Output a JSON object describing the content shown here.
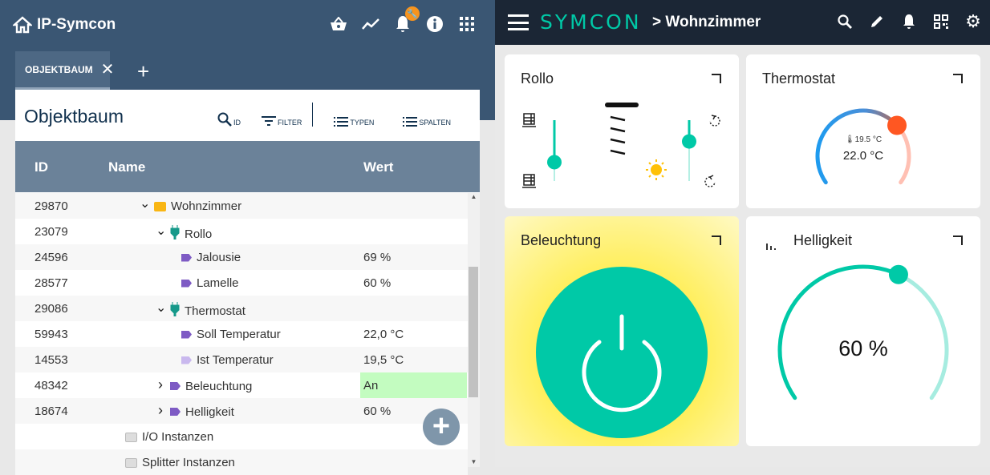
{
  "left": {
    "app_title": "IP-Symcon",
    "toolbar_icons": [
      "basket-icon",
      "chart-line-icon",
      "bell-icon",
      "info-icon",
      "apps-grid-icon"
    ],
    "notification_badge_icon": "wrench-icon",
    "tab": {
      "label": "OBJEKTBAUM"
    },
    "card_title": "Objektbaum",
    "tools": [
      {
        "icon": "search-icon",
        "label": "ID"
      },
      {
        "icon": "filter-icon",
        "label": "FILTER"
      },
      {
        "icon": "list-icon",
        "label": "TYPEN"
      },
      {
        "icon": "list-icon",
        "label": "SPALTEN"
      }
    ],
    "columns": {
      "id": "ID",
      "name": "Name",
      "value": "Wert"
    },
    "rows": [
      {
        "id": "29870",
        "name": "Wohnzimmer",
        "value": "",
        "type": "folder",
        "chevron": "down",
        "indent": 1
      },
      {
        "id": "23079",
        "name": "Rollo",
        "value": "",
        "type": "instance",
        "chevron": "down",
        "indent": 2
      },
      {
        "id": "24596",
        "name": "Jalousie",
        "value": "69 %",
        "type": "variable",
        "chevron": "",
        "indent": 3
      },
      {
        "id": "28577",
        "name": "Lamelle",
        "value": "60 %",
        "type": "variable",
        "chevron": "",
        "indent": 3
      },
      {
        "id": "29086",
        "name": "Thermostat",
        "value": "",
        "type": "instance",
        "chevron": "down",
        "indent": 2
      },
      {
        "id": "59943",
        "name": "Soll Temperatur",
        "value": "22,0 °C",
        "type": "variable",
        "chevron": "",
        "indent": 3
      },
      {
        "id": "14553",
        "name": "Ist Temperatur",
        "value": "19,5 °C",
        "type": "variable-readonly",
        "chevron": "",
        "indent": 3
      },
      {
        "id": "48342",
        "name": "Beleuchtung",
        "value": "An",
        "type": "variable",
        "chevron": "right",
        "indent": 2,
        "highlight": "#c3fcc0"
      },
      {
        "id": "18674",
        "name": "Helligkeit",
        "value": "60 %",
        "type": "variable",
        "chevron": "right",
        "indent": 2
      },
      {
        "id": "",
        "name": "I/O Instanzen",
        "value": "",
        "type": "folder-grey",
        "chevron": "",
        "indent": 0
      },
      {
        "id": "",
        "name": "Splitter Instanzen",
        "value": "",
        "type": "folder-grey",
        "chevron": "",
        "indent": 0
      }
    ]
  },
  "right": {
    "brand": "SYMCON",
    "breadcrumb": "> Wohnzimmer",
    "toolbar_icons": [
      "search-icon",
      "edit-icon",
      "bell-icon",
      "qr-code-icon",
      "gear-icon"
    ],
    "tiles": {
      "rollo": {
        "title": "Rollo",
        "jalousie_percent": 69,
        "lamelle_percent": 60
      },
      "thermostat": {
        "title": "Thermostat",
        "current": "19.5 °C",
        "setpoint": "22.0 °C",
        "knob_fraction": 0.69
      },
      "beleuchtung": {
        "title": "Beleuchtung",
        "state": "on"
      },
      "helligkeit": {
        "title": "Helligkeit",
        "value_text": "60 %",
        "value_percent": 60
      }
    },
    "colors": {
      "accent": "#00c9a7",
      "header": "#1b2635",
      "thermo_knob": "#ff5722",
      "sun": "#ffc107"
    }
  }
}
